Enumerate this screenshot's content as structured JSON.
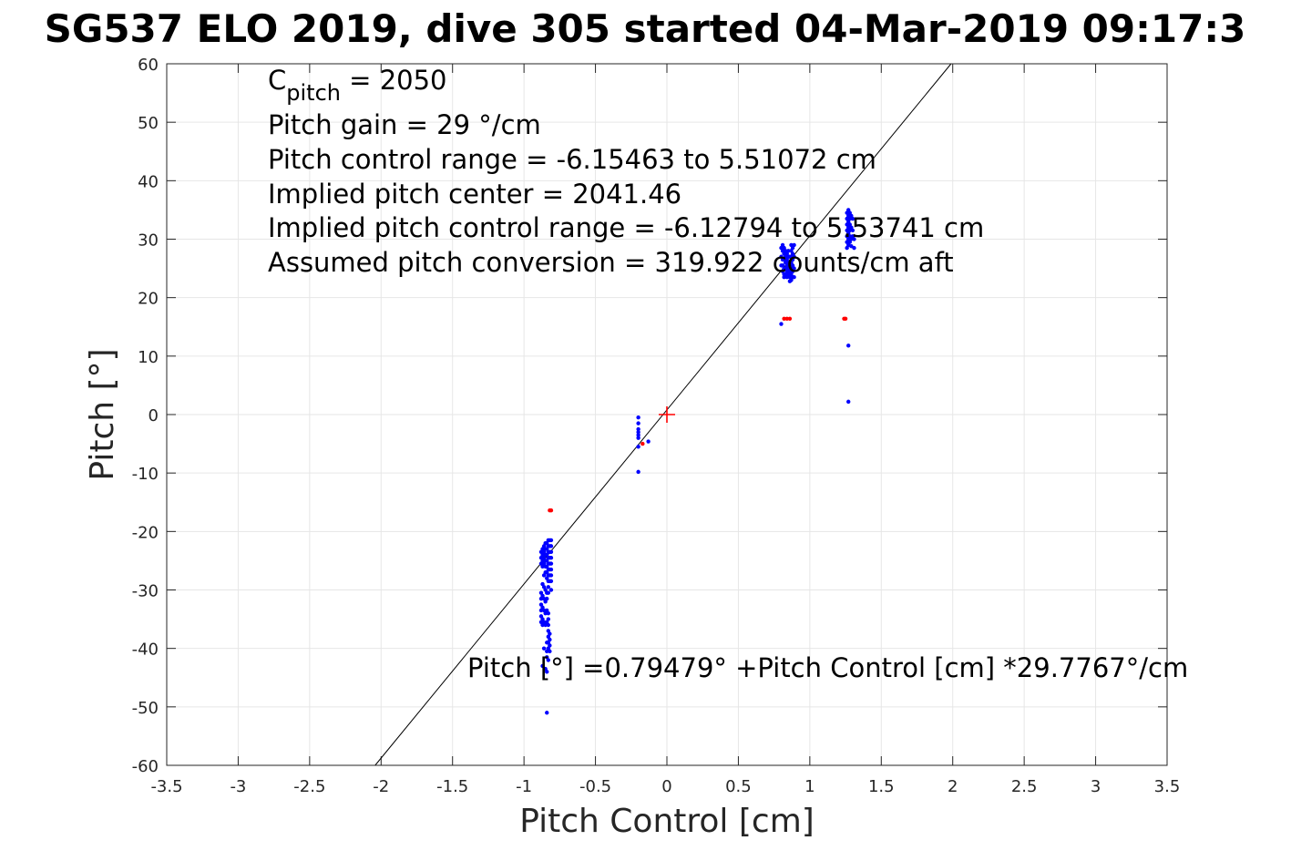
{
  "chart_data": {
    "type": "scatter",
    "title": "SG537 ELO 2019, dive 305 started 04-Mar-2019 09:17:3",
    "xlabel": "Pitch Control [cm]",
    "ylabel": "Pitch [°]",
    "xlim": [
      -3.5,
      3.5
    ],
    "ylim": [
      -60,
      60
    ],
    "xticks": [
      -3.5,
      -3,
      -2.5,
      -2,
      -1.5,
      -1,
      -0.5,
      0,
      0.5,
      1,
      1.5,
      2,
      2.5,
      3,
      3.5
    ],
    "yticks": [
      -60,
      -50,
      -40,
      -30,
      -20,
      -10,
      0,
      10,
      20,
      30,
      40,
      50,
      60
    ],
    "xtick_labels": [
      "-3.5",
      "-3",
      "-2.5",
      "-2",
      "-1.5",
      "-1",
      "-0.5",
      "0",
      "0.5",
      "1",
      "1.5",
      "2",
      "2.5",
      "3",
      "3.5"
    ],
    "ytick_labels": [
      "-60",
      "-50",
      "-40",
      "-30",
      "-20",
      "-10",
      "0",
      "10",
      "20",
      "30",
      "40",
      "50",
      "60"
    ],
    "grid": true,
    "annotations": {
      "c_pitch": {
        "prefix": "C",
        "subscript": "pitch",
        "suffix": " = 2050"
      },
      "lines": [
        "Pitch gain = 29 °/cm",
        "Pitch control range = -6.15463 to 5.51072 cm",
        "Implied pitch center = 2041.46",
        "Implied pitch control range = -6.12794 to 5.53741 cm",
        "Assumed pitch conversion = 319.922 counts/cm aft"
      ],
      "fit_equation": "Pitch [°] =0.79479° +Pitch Control [cm] *29.7767°/cm"
    },
    "fit_line": {
      "intercept": 0.79479,
      "slope": 29.7767,
      "color": "#000000"
    },
    "center_marker": {
      "x": 0,
      "y": 0,
      "color": "#ff0000"
    },
    "series": [
      {
        "color": "#0000ff",
        "points": [
          [
            -0.88,
            -23.5
          ],
          [
            -0.88,
            -24.5
          ],
          [
            -0.88,
            -25.5
          ],
          [
            -0.88,
            -30.5
          ],
          [
            -0.88,
            -31.5
          ],
          [
            -0.88,
            -32.5
          ],
          [
            -0.88,
            -33.5
          ],
          [
            -0.88,
            -34.5
          ],
          [
            -0.88,
            -35.5
          ],
          [
            -0.87,
            -23.0
          ],
          [
            -0.87,
            -24.0
          ],
          [
            -0.87,
            -25.0
          ],
          [
            -0.87,
            -26.0
          ],
          [
            -0.87,
            -29.0
          ],
          [
            -0.87,
            -31.0
          ],
          [
            -0.87,
            -33.0
          ],
          [
            -0.87,
            -35.0
          ],
          [
            -0.87,
            -36.0
          ],
          [
            -0.87,
            -43.0
          ],
          [
            -0.86,
            -22.5
          ],
          [
            -0.86,
            -23.5
          ],
          [
            -0.86,
            -24.5
          ],
          [
            -0.86,
            -25.5
          ],
          [
            -0.86,
            -27.5
          ],
          [
            -0.86,
            -29.5
          ],
          [
            -0.86,
            -31.5
          ],
          [
            -0.86,
            -33.5
          ],
          [
            -0.86,
            -35.5
          ],
          [
            -0.86,
            -40.0
          ],
          [
            -0.85,
            -22.0
          ],
          [
            -0.85,
            -23.0
          ],
          [
            -0.85,
            -24.0
          ],
          [
            -0.85,
            -25.0
          ],
          [
            -0.85,
            -26.0
          ],
          [
            -0.85,
            -27.0
          ],
          [
            -0.85,
            -30.0
          ],
          [
            -0.85,
            -32.0
          ],
          [
            -0.85,
            -34.0
          ],
          [
            -0.85,
            -36.0
          ],
          [
            -0.85,
            -43.5
          ],
          [
            -0.84,
            -22.0
          ],
          [
            -0.84,
            -23.0
          ],
          [
            -0.84,
            -24.0
          ],
          [
            -0.84,
            -25.0
          ],
          [
            -0.84,
            -26.0
          ],
          [
            -0.84,
            -27.0
          ],
          [
            -0.84,
            -28.0
          ],
          [
            -0.84,
            -30.5
          ],
          [
            -0.84,
            -31.5
          ],
          [
            -0.84,
            -33.5
          ],
          [
            -0.84,
            -35.5
          ],
          [
            -0.84,
            -39.0
          ],
          [
            -0.84,
            -40.5
          ],
          [
            -0.84,
            -41.5
          ],
          [
            -0.84,
            -44.0
          ],
          [
            -0.84,
            -51.0
          ],
          [
            -0.83,
            -21.5
          ],
          [
            -0.83,
            -22.5
          ],
          [
            -0.83,
            -23.5
          ],
          [
            -0.83,
            -24.5
          ],
          [
            -0.83,
            -25.5
          ],
          [
            -0.83,
            -26.5
          ],
          [
            -0.83,
            -27.5
          ],
          [
            -0.83,
            -28.5
          ],
          [
            -0.83,
            -29.5
          ],
          [
            -0.83,
            -30.5
          ],
          [
            -0.83,
            -34.0
          ],
          [
            -0.83,
            -35.0
          ],
          [
            -0.83,
            -36.0
          ],
          [
            -0.83,
            -37.0
          ],
          [
            -0.83,
            -38.0
          ],
          [
            -0.83,
            -39.0
          ],
          [
            -0.83,
            -40.0
          ],
          [
            -0.83,
            -42.0
          ],
          [
            -0.82,
            -21.5
          ],
          [
            -0.82,
            -22.5
          ],
          [
            -0.82,
            -23.5
          ],
          [
            -0.82,
            -24.5
          ],
          [
            -0.82,
            -25.5
          ],
          [
            -0.82,
            -26.5
          ],
          [
            -0.82,
            -27.5
          ],
          [
            -0.82,
            -28.5
          ],
          [
            -0.82,
            -37.5
          ],
          [
            -0.82,
            -38.5
          ],
          [
            -0.82,
            -39.5
          ],
          [
            -0.82,
            -40.5
          ],
          [
            -0.81,
            -21.5
          ],
          [
            -0.81,
            -22.5
          ],
          [
            -0.81,
            -23.5
          ],
          [
            -0.81,
            -24.5
          ],
          [
            -0.81,
            -25.5
          ],
          [
            -0.81,
            -26.5
          ],
          [
            -0.81,
            -27.5
          ],
          [
            -0.81,
            -28.5
          ],
          [
            -0.81,
            -30.0
          ],
          [
            -0.2,
            -0.5
          ],
          [
            -0.2,
            -1.5
          ],
          [
            -0.2,
            -2.5
          ],
          [
            -0.2,
            -3.0
          ],
          [
            -0.2,
            -3.5
          ],
          [
            -0.2,
            -4.0
          ],
          [
            -0.2,
            -5.5
          ],
          [
            -0.2,
            -9.8
          ],
          [
            -0.13,
            -4.6
          ],
          [
            0.8,
            28.5
          ],
          [
            0.8,
            27.0
          ],
          [
            0.8,
            25.5
          ],
          [
            0.8,
            15.5
          ],
          [
            0.81,
            29.0
          ],
          [
            0.81,
            28.0
          ],
          [
            0.81,
            26.5
          ],
          [
            0.81,
            25.5
          ],
          [
            0.81,
            24.5
          ],
          [
            0.82,
            28.5
          ],
          [
            0.82,
            27.5
          ],
          [
            0.82,
            26.5
          ],
          [
            0.82,
            25.0
          ],
          [
            0.82,
            24.0
          ],
          [
            0.82,
            23.5
          ],
          [
            0.83,
            28.0
          ],
          [
            0.83,
            27.0
          ],
          [
            0.83,
            26.0
          ],
          [
            0.83,
            25.0
          ],
          [
            0.83,
            24.0
          ],
          [
            0.84,
            27.5
          ],
          [
            0.84,
            26.5
          ],
          [
            0.84,
            25.5
          ],
          [
            0.84,
            24.5
          ],
          [
            0.84,
            23.5
          ],
          [
            0.85,
            28.0
          ],
          [
            0.85,
            27.0
          ],
          [
            0.85,
            26.0
          ],
          [
            0.85,
            25.0
          ],
          [
            0.85,
            24.0
          ],
          [
            0.86,
            27.0
          ],
          [
            0.86,
            26.0
          ],
          [
            0.86,
            25.0
          ],
          [
            0.86,
            24.5
          ],
          [
            0.86,
            23.5
          ],
          [
            0.86,
            22.8
          ],
          [
            0.87,
            29.0
          ],
          [
            0.87,
            28.0
          ],
          [
            0.87,
            27.0
          ],
          [
            0.87,
            26.0
          ],
          [
            0.87,
            25.0
          ],
          [
            0.87,
            24.0
          ],
          [
            0.87,
            23.0
          ],
          [
            0.88,
            28.5
          ],
          [
            0.88,
            27.5
          ],
          [
            0.88,
            26.5
          ],
          [
            0.88,
            25.5
          ],
          [
            0.88,
            24.5
          ],
          [
            0.88,
            23.5
          ],
          [
            0.89,
            29.0
          ],
          [
            0.89,
            27.0
          ],
          [
            0.89,
            25.0
          ],
          [
            0.89,
            23.5
          ],
          [
            1.26,
            34.5
          ],
          [
            1.26,
            33.5
          ],
          [
            1.26,
            32.5
          ],
          [
            1.26,
            31.5
          ],
          [
            1.26,
            30.5
          ],
          [
            1.26,
            29.5
          ],
          [
            1.26,
            28.5
          ],
          [
            1.27,
            35.0
          ],
          [
            1.27,
            34.0
          ],
          [
            1.27,
            33.0
          ],
          [
            1.27,
            32.0
          ],
          [
            1.27,
            31.0
          ],
          [
            1.27,
            30.0
          ],
          [
            1.27,
            29.0
          ],
          [
            1.27,
            11.8
          ],
          [
            1.27,
            2.2
          ],
          [
            1.28,
            34.5
          ],
          [
            1.28,
            33.5
          ],
          [
            1.28,
            32.5
          ],
          [
            1.28,
            31.5
          ],
          [
            1.28,
            30.5
          ],
          [
            1.28,
            29.5
          ],
          [
            1.29,
            34.0
          ],
          [
            1.29,
            32.0
          ],
          [
            1.29,
            30.0
          ],
          [
            1.29,
            28.8
          ],
          [
            1.3,
            33.5
          ],
          [
            1.3,
            31.5
          ],
          [
            1.3,
            30.5
          ],
          [
            1.31,
            30.0
          ],
          [
            1.31,
            28.5
          ]
        ]
      },
      {
        "color": "#ff0000",
        "points": [
          [
            -0.82,
            -16.4
          ],
          [
            -0.81,
            -16.4
          ],
          [
            -0.17,
            -5.0
          ],
          [
            0.82,
            16.4
          ],
          [
            0.84,
            16.4
          ],
          [
            0.86,
            16.4
          ],
          [
            1.24,
            16.4
          ],
          [
            1.25,
            16.4
          ]
        ]
      }
    ]
  }
}
